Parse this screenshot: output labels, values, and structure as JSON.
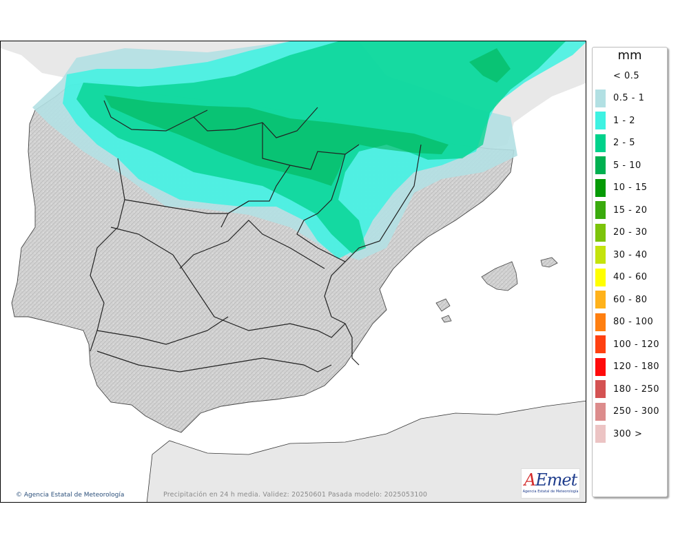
{
  "legend": {
    "unit": "mm",
    "items": [
      {
        "label": "< 0.5",
        "color": "#ffffff"
      },
      {
        "label": "0.5 - 1",
        "color": "#b2e0e3"
      },
      {
        "label": "1 - 2",
        "color": "#3ef2e2"
      },
      {
        "label": "2 - 5",
        "color": "#00d28b"
      },
      {
        "label": "5 - 10",
        "color": "#00b050"
      },
      {
        "label": "10 - 15",
        "color": "#059a05"
      },
      {
        "label": "15 - 20",
        "color": "#3aaa0d"
      },
      {
        "label": "20 - 30",
        "color": "#7cc40a"
      },
      {
        "label": "30 - 40",
        "color": "#c4e30c"
      },
      {
        "label": "40 - 60",
        "color": "#ffff00"
      },
      {
        "label": "60 - 80",
        "color": "#ffb21a"
      },
      {
        "label": "80 - 100",
        "color": "#ff7f10"
      },
      {
        "label": "100 - 120",
        "color": "#ff4010"
      },
      {
        "label": "120 - 180",
        "color": "#ff0a0a"
      },
      {
        "label": "180 - 250",
        "color": "#d45252"
      },
      {
        "label": "250 - 300",
        "color": "#dc8c8c"
      },
      {
        "label": "300 >",
        "color": "#ecc4c4"
      }
    ]
  },
  "map": {
    "caption": "Precipitación en 24 h media. Validez: 20250601 Pasada modelo: 2025053100",
    "copyright": "Agencia Estatal de Meteorología",
    "logo": {
      "word_prefix": "A",
      "word_rest": "Emet",
      "subtitle": "Agencia Estatal de Meteorología"
    }
  }
}
